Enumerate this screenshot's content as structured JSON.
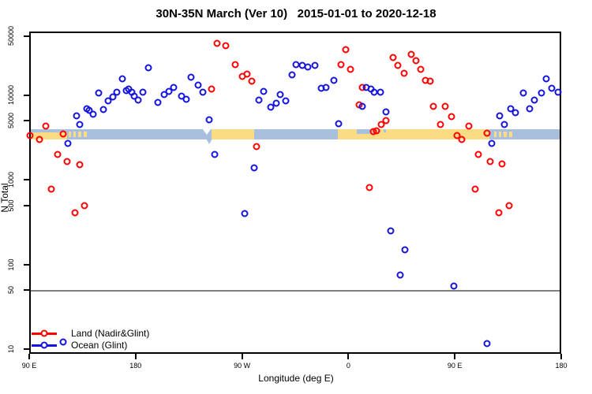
{
  "title": "30N-35N March (Ver 10)   2015-01-01 to 2020-12-18",
  "colors": {
    "land_points": "#ff0000",
    "ocean_points": "#1414dd",
    "band_ocean": "#a9bfde",
    "band_land": "#fbdb84",
    "reference_line": "#7f7f7f",
    "frame": "#000000"
  },
  "legend": {
    "items": [
      {
        "label": "Land (Nadir&Glint)",
        "color": "#ff0000"
      },
      {
        "label": "Ocean (Glint)",
        "color": "#1414dd"
      }
    ]
  },
  "chart_data": {
    "type": "scatter",
    "title": "30N-35N March (Ver 10)   2015-01-01 to 2020-12-18",
    "xlabel": "Longitude (deg E)",
    "ylabel": "N Total",
    "x_axis": {
      "note": "degrees east of 90E, axis wraps 90E->180->90W->0->90E->180",
      "range": [
        0,
        450
      ],
      "ticks": [
        {
          "pos": 0,
          "label": "90 E"
        },
        {
          "pos": 90,
          "label": "180"
        },
        {
          "pos": 180,
          "label": "90 W"
        },
        {
          "pos": 270,
          "label": "0"
        },
        {
          "pos": 360,
          "label": "90 E"
        },
        {
          "pos": 450,
          "label": "180"
        }
      ]
    },
    "y_axis": {
      "scale": "log",
      "top_value": 50000,
      "tick_values": [
        50000,
        10000,
        5000,
        1000,
        500,
        100,
        50,
        10
      ],
      "tick_labels": [
        "50000",
        "10000",
        "5000",
        "1000",
        "500",
        "100",
        "50",
        "10"
      ]
    },
    "reference_line_y": 50,
    "land_ocean_band": {
      "value_top": 4000,
      "value_bottom": 3000,
      "ocean_color": "#a9bfde",
      "land_color": "#fbdb84",
      "land_segments": [
        {
          "from": 0,
          "to": 32,
          "thin": true
        },
        {
          "from": 154,
          "to": 190
        },
        {
          "from": 261,
          "to": 389
        }
      ],
      "island_speckles": [
        [
          33.5,
          35.5
        ],
        [
          37.5,
          39.5
        ],
        [
          41.5,
          44
        ],
        [
          46,
          48.5
        ],
        [
          393.5,
          395.5
        ],
        [
          397.5,
          399.5
        ],
        [
          401.5,
          404
        ],
        [
          406,
          408.5
        ]
      ],
      "ocean_overlays": [
        {
          "from": 277,
          "to": 289,
          "frac": 0.5
        },
        {
          "from": 290.5,
          "to": 292.5,
          "frac": 0.4
        },
        {
          "from": 295,
          "to": 297,
          "frac": 0.35
        },
        {
          "from": 299.5,
          "to": 301.5,
          "frac": 0.3
        }
      ],
      "coast_notch_deg": 150.5
    },
    "series": [
      {
        "name": "Land (Nadir&Glint)",
        "color": "#ff0000",
        "points": [
          [
            1,
            3350
          ],
          [
            9,
            3000
          ],
          [
            14,
            4300
          ],
          [
            19,
            780
          ],
          [
            24,
            2000
          ],
          [
            29,
            3500
          ],
          [
            32,
            1650
          ],
          [
            39,
            410
          ],
          [
            43,
            1500
          ],
          [
            47,
            500
          ],
          [
            154,
            12000
          ],
          [
            159,
            41000
          ],
          [
            166,
            38500
          ],
          [
            174,
            23000
          ],
          [
            180,
            16700
          ],
          [
            184,
            17900
          ],
          [
            188,
            14700
          ],
          [
            192,
            2500
          ],
          [
            264,
            23000
          ],
          [
            268,
            34700
          ],
          [
            272,
            20300
          ],
          [
            279,
            7700
          ],
          [
            282,
            12300
          ],
          [
            288,
            810
          ],
          [
            291,
            3700
          ],
          [
            294,
            3800
          ],
          [
            298,
            4500
          ],
          [
            302,
            5000
          ],
          [
            308,
            28000
          ],
          [
            312,
            22600
          ],
          [
            317,
            18200
          ],
          [
            323,
            30500
          ],
          [
            327,
            25700
          ],
          [
            331,
            20300
          ],
          [
            335,
            15000
          ],
          [
            339,
            14800
          ],
          [
            342,
            7400
          ],
          [
            348,
            4500
          ],
          [
            352,
            7400
          ],
          [
            357,
            5600
          ],
          [
            362,
            3350
          ],
          [
            366,
            3000
          ],
          [
            372,
            4300
          ],
          [
            377,
            780
          ],
          [
            380,
            2000
          ],
          [
            387,
            3600
          ],
          [
            390,
            1650
          ],
          [
            397,
            410
          ],
          [
            400,
            1550
          ],
          [
            406,
            500
          ]
        ]
      },
      {
        "name": "Ocean (Glint)",
        "color": "#1414dd",
        "points": [
          [
            29,
            12
          ],
          [
            33,
            2700
          ],
          [
            40,
            5700
          ],
          [
            43,
            4500
          ],
          [
            49,
            7000
          ],
          [
            51,
            6600
          ],
          [
            54,
            6000
          ],
          [
            59,
            10700
          ],
          [
            63,
            6800
          ],
          [
            67,
            8600
          ],
          [
            71,
            9600
          ],
          [
            74,
            11000
          ],
          [
            79,
            15700
          ],
          [
            82,
            11400
          ],
          [
            84,
            11800
          ],
          [
            87,
            11000
          ],
          [
            89,
            9800
          ],
          [
            92,
            8800
          ],
          [
            96,
            11000
          ],
          [
            101,
            21000
          ],
          [
            109,
            8300
          ],
          [
            114,
            10200
          ],
          [
            118,
            11100
          ],
          [
            122,
            12300
          ],
          [
            129,
            9800
          ],
          [
            133,
            9000
          ],
          [
            137,
            16400
          ],
          [
            143,
            13200
          ],
          [
            147,
            10900
          ],
          [
            152,
            5100
          ],
          [
            157,
            2000
          ],
          [
            182,
            400
          ],
          [
            190,
            1400
          ],
          [
            194,
            8800
          ],
          [
            198,
            11100
          ],
          [
            204,
            7300
          ],
          [
            209,
            8100
          ],
          [
            212,
            10200
          ],
          [
            217,
            8600
          ],
          [
            222,
            17400
          ],
          [
            226,
            23100
          ],
          [
            231,
            22600
          ],
          [
            236,
            21700
          ],
          [
            242,
            22600
          ],
          [
            247,
            12100
          ],
          [
            251,
            12300
          ],
          [
            258,
            15000
          ],
          [
            262,
            4600
          ],
          [
            282,
            7400
          ],
          [
            285,
            12300
          ],
          [
            289,
            11800
          ],
          [
            292,
            10900
          ],
          [
            297,
            10900
          ],
          [
            302,
            6400
          ],
          [
            306,
            250
          ],
          [
            314,
            75
          ],
          [
            318,
            150
          ],
          [
            359,
            55
          ],
          [
            387,
            11.5
          ],
          [
            391,
            2700
          ],
          [
            398,
            5700
          ],
          [
            402,
            4500
          ],
          [
            407,
            7000
          ],
          [
            411,
            6200
          ],
          [
            418,
            10700
          ],
          [
            423,
            7000
          ],
          [
            427,
            8800
          ],
          [
            433,
            10700
          ],
          [
            437,
            15700
          ],
          [
            442,
            12100
          ],
          [
            447,
            10900
          ]
        ]
      }
    ]
  }
}
